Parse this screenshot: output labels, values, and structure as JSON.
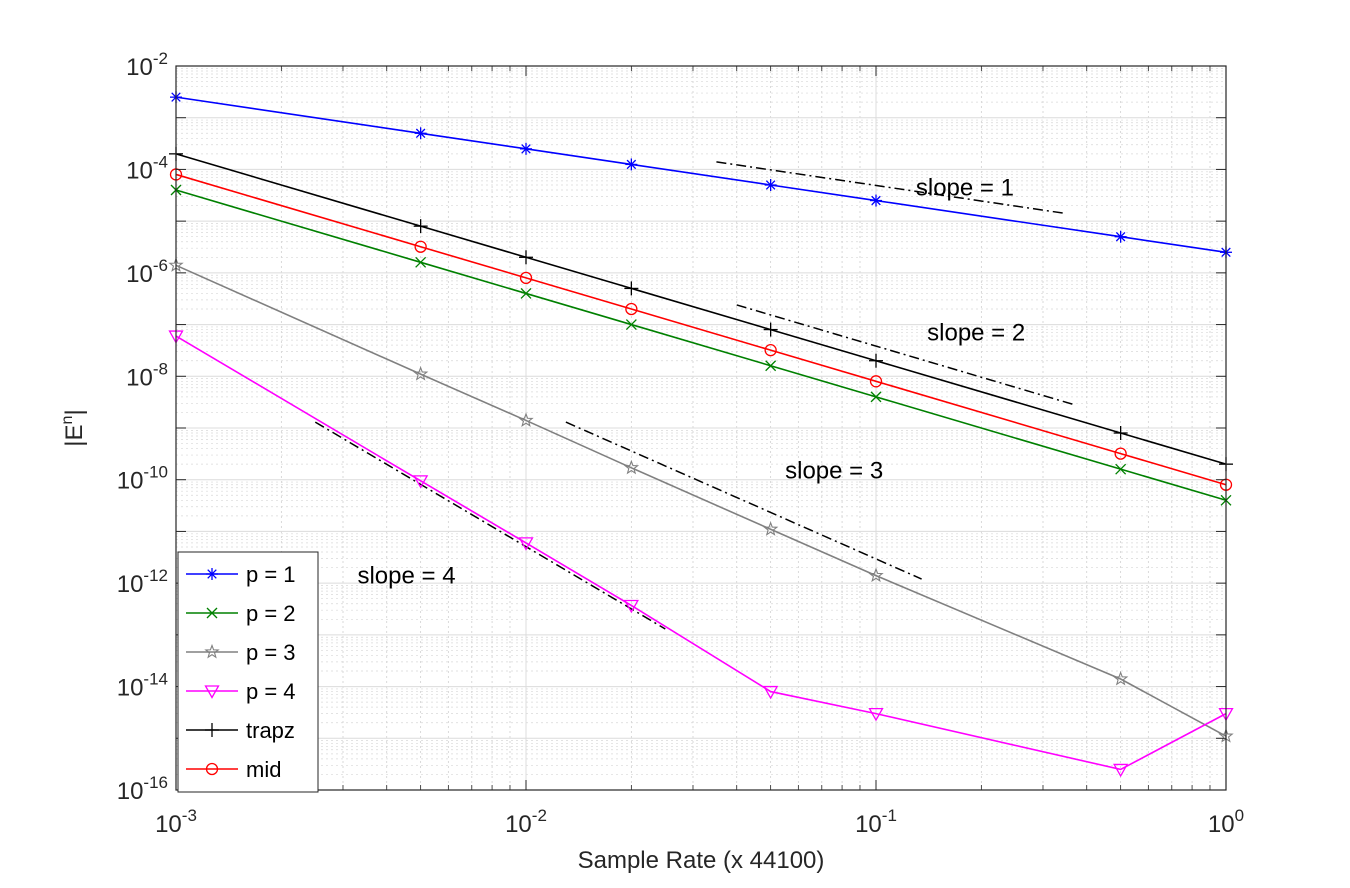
{
  "chart_data": {
    "type": "line",
    "xscale": "log",
    "yscale": "log",
    "xlabel": "Sample Rate (x 44100)",
    "ylabel_base": "|E",
    "ylabel_sup": "n",
    "ylabel_end": "|",
    "xlim": [
      0.001,
      1
    ],
    "ylim": [
      1e-16,
      0.01
    ],
    "grid": true,
    "minor_grid": true,
    "legend_position": "bottom-left",
    "x_ticks": [
      {
        "base": "10",
        "exp": "-3"
      },
      {
        "base": "10",
        "exp": "-2"
      },
      {
        "base": "10",
        "exp": "-1"
      },
      {
        "base": "10",
        "exp": "0"
      }
    ],
    "y_ticks": [
      {
        "base": "10",
        "exp": "-16"
      },
      {
        "base": "10",
        "exp": "-14"
      },
      {
        "base": "10",
        "exp": "-12"
      },
      {
        "base": "10",
        "exp": "-10"
      },
      {
        "base": "10",
        "exp": "-8"
      },
      {
        "base": "10",
        "exp": "-6"
      },
      {
        "base": "10",
        "exp": "-4"
      },
      {
        "base": "10",
        "exp": "-2"
      }
    ],
    "x": [
      0.001,
      0.005,
      0.01,
      0.02,
      0.05,
      0.1,
      0.5,
      1
    ],
    "series": [
      {
        "name": "p = 1",
        "color": "#0000ff",
        "marker": "asterisk",
        "values": [
          0.0025,
          0.0005,
          0.00025,
          0.000125,
          5e-05,
          2.5e-05,
          5e-06,
          2.5e-06
        ]
      },
      {
        "name": "p = 2",
        "color": "#008000",
        "marker": "x",
        "values": [
          4e-05,
          1.6e-06,
          4e-07,
          1e-07,
          1.6e-08,
          4e-09,
          1.6e-10,
          4e-11
        ]
      },
      {
        "name": "p = 3",
        "color": "#808080",
        "marker": "star",
        "values": [
          1.4e-06,
          1.1e-08,
          1.4e-09,
          1.7e-10,
          1.1e-11,
          1.4e-12,
          1.4e-14,
          1.1e-15
        ]
      },
      {
        "name": "p = 4",
        "color": "#ff00ff",
        "marker": "triangle-down",
        "values": [
          6e-08,
          9.5e-11,
          6e-12,
          3.7e-13,
          8e-15,
          3e-15,
          2.5e-16,
          3e-15
        ]
      },
      {
        "name": "trapz",
        "color": "#000000",
        "marker": "plus",
        "values": [
          0.0002,
          8e-06,
          2e-06,
          5e-07,
          8e-08,
          2e-08,
          8e-10,
          2e-10
        ]
      },
      {
        "name": "mid",
        "color": "#ff0000",
        "marker": "circle",
        "values": [
          8e-05,
          3.2e-06,
          8e-07,
          2e-07,
          3.2e-08,
          8e-09,
          3.2e-10,
          8e-11
        ]
      }
    ],
    "reference_lines": [
      {
        "label": "slope = 1",
        "x": [
          0.035,
          0.35
        ],
        "y": [
          0.00014,
          1.4e-05
        ],
        "label_at": [
          0.13,
          4.5e-05
        ]
      },
      {
        "label": "slope = 2",
        "x": [
          0.04,
          0.37
        ],
        "y": [
          2.4e-07,
          2.8e-09
        ],
        "label_at": [
          0.14,
          7e-08
        ]
      },
      {
        "label": "slope = 3",
        "x": [
          0.013,
          0.135
        ],
        "y": [
          1.3e-09,
          1.2e-12
        ],
        "label_at": [
          0.055,
          1.5e-10
        ]
      },
      {
        "label": "slope = 4",
        "x": [
          0.0025,
          0.025
        ],
        "y": [
          1.3e-09,
          1.3e-13
        ],
        "label_at": [
          0.0033,
          1.4e-12
        ]
      }
    ]
  }
}
